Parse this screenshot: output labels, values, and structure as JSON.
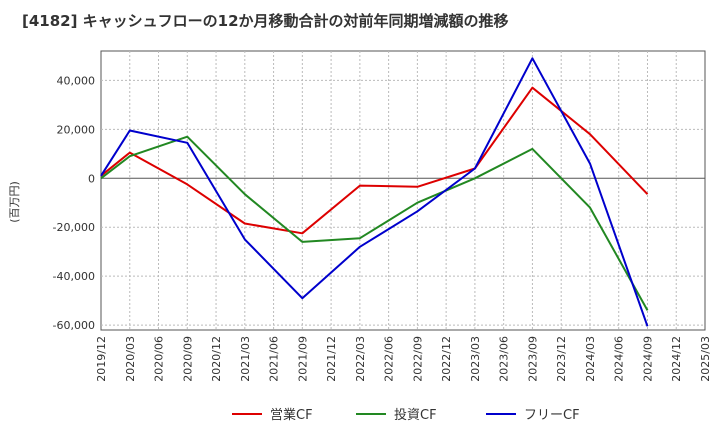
{
  "chart_data": {
    "type": "line",
    "title": "[4182]  キャッシュフローの12か月移動合計の対前年同期増減額の推移",
    "ylabel": "(百万円)",
    "xlabel": "",
    "ylim": [
      -62000,
      52000
    ],
    "y_ticks": [
      40000,
      20000,
      0,
      -20000,
      -40000,
      -60000
    ],
    "y_tick_labels": [
      "40,000",
      "20,000",
      "0",
      "-20,000",
      "-40,000",
      "-60,000"
    ],
    "categories": [
      "2019/12",
      "2020/03",
      "2020/06",
      "2020/09",
      "2020/12",
      "2021/03",
      "2021/06",
      "2021/09",
      "2021/12",
      "2022/03",
      "2022/06",
      "2022/09",
      "2022/12",
      "2023/03",
      "2023/06",
      "2023/09",
      "2023/12",
      "2024/03",
      "2024/06",
      "2024/09",
      "2024/12",
      "2025/03"
    ],
    "grid": true,
    "legend_position": "bottom",
    "series": [
      {
        "name": "営業CF",
        "color": "#dd0000",
        "values": [
          1000,
          10500,
          null,
          -2500,
          null,
          -18500,
          null,
          -22500,
          null,
          -3000,
          null,
          -3500,
          null,
          4000,
          null,
          37000,
          null,
          18000,
          null,
          -6500,
          null,
          null
        ]
      },
      {
        "name": "投資CF",
        "color": "#228822",
        "values": [
          0,
          9000,
          null,
          17000,
          null,
          -6500,
          null,
          -26000,
          null,
          -24500,
          null,
          -10000,
          null,
          0,
          null,
          12000,
          null,
          -12000,
          null,
          -54000,
          null,
          null
        ]
      },
      {
        "name": "フリーCF",
        "color": "#0000cc",
        "values": [
          1000,
          19500,
          null,
          14500,
          null,
          -25000,
          null,
          -49000,
          null,
          -28000,
          null,
          -13500,
          null,
          4000,
          null,
          49000,
          null,
          6000,
          null,
          -60500,
          null,
          null
        ]
      }
    ]
  }
}
